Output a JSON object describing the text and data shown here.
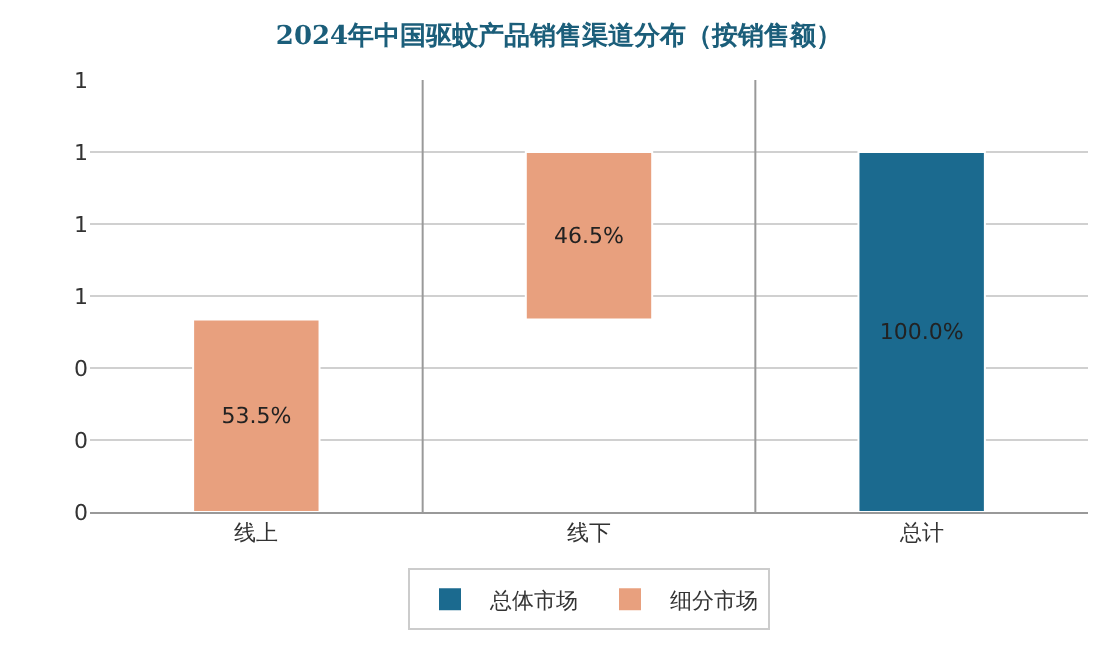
{
  "chart_data": {
    "type": "bar",
    "title": "2024年中国驱蚊产品销售渠道分布（按销售额）",
    "categories": [
      "线上",
      "线下",
      "总计"
    ],
    "series": [
      {
        "name": "总体市场",
        "color": "#1b6a8f",
        "values": [
          null,
          null,
          1.0
        ],
        "base": [
          null,
          null,
          0
        ],
        "value_labels": [
          null,
          null,
          "100.0%"
        ]
      },
      {
        "name": "细分市场",
        "color": "#e8a07e",
        "values": [
          0.535,
          0.465,
          null
        ],
        "base": [
          0,
          0.535,
          null
        ],
        "value_labels": [
          "53.5%",
          "46.5%",
          null
        ]
      }
    ],
    "ylim": [
      0,
      1.2
    ],
    "yticks": [
      {
        "value": 0,
        "label": "0"
      },
      {
        "value": 0.2,
        "label": "0"
      },
      {
        "value": 0.4,
        "label": "0"
      },
      {
        "value": 0.6,
        "label": "1"
      },
      {
        "value": 0.8,
        "label": "1"
      },
      {
        "value": 1.0,
        "label": "1"
      },
      {
        "value": 1.2,
        "label": "1"
      }
    ],
    "grid": "y",
    "legend": "bottom"
  }
}
